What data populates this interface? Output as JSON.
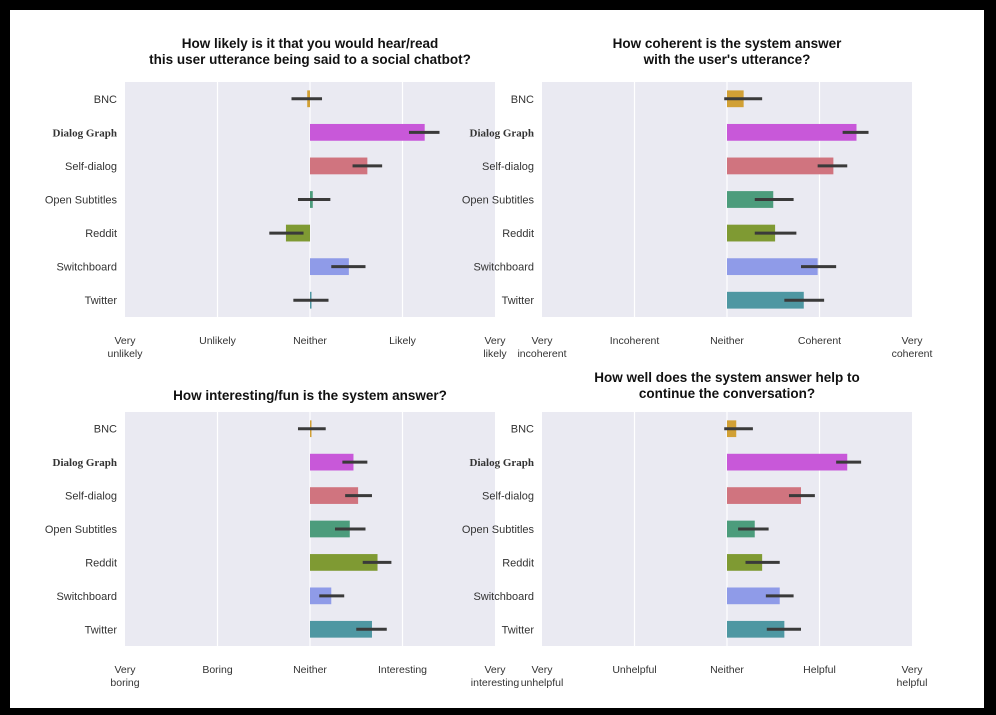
{
  "chart_data": [
    {
      "type": "bar",
      "orientation": "horizontal",
      "title": [
        "How likely is it that you would hear/read",
        "this user utterance being said to a social chatbot?"
      ],
      "categories": [
        "BNC",
        "Dialog Graph",
        "Self-dialog",
        "Open Subtitles",
        "Reddit",
        "Switchboard",
        "Twitter"
      ],
      "xlim": [
        1,
        5
      ],
      "ticks": [
        1,
        2,
        3,
        4,
        5
      ],
      "tick_labels": [
        [
          "Very",
          "unlikely"
        ],
        [
          "Unlikely"
        ],
        [
          "Neither"
        ],
        [
          "Likely"
        ],
        [
          "Very",
          "likely"
        ]
      ],
      "values": [
        2.97,
        4.24,
        3.62,
        3.03,
        2.74,
        3.42,
        3.0
      ],
      "error": [
        [
          2.8,
          3.13
        ],
        [
          4.07,
          4.4
        ],
        [
          3.46,
          3.78
        ],
        [
          2.87,
          3.22
        ],
        [
          2.56,
          2.93
        ],
        [
          3.23,
          3.6
        ],
        [
          2.82,
          3.2
        ]
      ],
      "colors": [
        "#d1a035",
        "#c858d9",
        "#d0747f",
        "#4c9c7c",
        "#7f9a33",
        "#8f9be8",
        "#4e97a2"
      ],
      "grid": true
    },
    {
      "type": "bar",
      "orientation": "horizontal",
      "title": [
        "How coherent is the system answer",
        "with the user's utterance?"
      ],
      "categories": [
        "BNC",
        "Dialog Graph",
        "Self-dialog",
        "Open Subtitles",
        "Reddit",
        "Switchboard",
        "Twitter"
      ],
      "xlim": [
        1,
        5
      ],
      "ticks": [
        1,
        2,
        3,
        4,
        5
      ],
      "tick_labels": [
        [
          "Very",
          "incoherent"
        ],
        [
          "Incoherent"
        ],
        [
          "Neither"
        ],
        [
          "Coherent"
        ],
        [
          "Very",
          "coherent"
        ]
      ],
      "values": [
        3.18,
        4.4,
        4.15,
        3.5,
        3.52,
        3.98,
        3.83
      ],
      "error": [
        [
          2.97,
          3.38
        ],
        [
          4.25,
          4.53
        ],
        [
          3.98,
          4.3
        ],
        [
          3.3,
          3.72
        ],
        [
          3.3,
          3.75
        ],
        [
          3.8,
          4.18
        ],
        [
          3.62,
          4.05
        ]
      ],
      "colors": [
        "#d1a035",
        "#c858d9",
        "#d0747f",
        "#4c9c7c",
        "#7f9a33",
        "#8f9be8",
        "#4e97a2"
      ],
      "grid": true
    },
    {
      "type": "bar",
      "orientation": "horizontal",
      "title": [
        "How interesting/fun is the system answer?"
      ],
      "categories": [
        "BNC",
        "Dialog Graph",
        "Self-dialog",
        "Open Subtitles",
        "Reddit",
        "Switchboard",
        "Twitter"
      ],
      "xlim": [
        1,
        5
      ],
      "ticks": [
        1,
        2,
        3,
        4,
        5
      ],
      "tick_labels": [
        [
          "Very",
          "boring"
        ],
        [
          "Boring"
        ],
        [
          "Neither"
        ],
        [
          "Interesting"
        ],
        [
          "Very",
          "interesting"
        ]
      ],
      "values": [
        3.0,
        3.47,
        3.52,
        3.43,
        3.73,
        3.23,
        3.67
      ],
      "error": [
        [
          2.87,
          3.17
        ],
        [
          3.35,
          3.62
        ],
        [
          3.38,
          3.67
        ],
        [
          3.27,
          3.6
        ],
        [
          3.57,
          3.88
        ],
        [
          3.1,
          3.37
        ],
        [
          3.5,
          3.83
        ]
      ],
      "colors": [
        "#d1a035",
        "#c858d9",
        "#d0747f",
        "#4c9c7c",
        "#7f9a33",
        "#8f9be8",
        "#4e97a2"
      ],
      "grid": true
    },
    {
      "type": "bar",
      "orientation": "horizontal",
      "title": [
        "How well does the system answer help to",
        "continue the conversation?"
      ],
      "categories": [
        "BNC",
        "Dialog Graph",
        "Self-dialog",
        "Open Subtitles",
        "Reddit",
        "Switchboard",
        "Twitter"
      ],
      "xlim": [
        1,
        5
      ],
      "ticks": [
        1,
        2,
        3,
        4,
        5
      ],
      "tick_labels": [
        [
          "Very",
          "unhelpful"
        ],
        [
          "Unhelpful"
        ],
        [
          "Neither"
        ],
        [
          "Helpful"
        ],
        [
          "Very",
          "helpful"
        ]
      ],
      "values": [
        3.1,
        4.3,
        3.8,
        3.3,
        3.38,
        3.57,
        3.62
      ],
      "error": [
        [
          2.97,
          3.28
        ],
        [
          4.18,
          4.45
        ],
        [
          3.67,
          3.95
        ],
        [
          3.12,
          3.45
        ],
        [
          3.2,
          3.57
        ],
        [
          3.42,
          3.72
        ],
        [
          3.43,
          3.8
        ]
      ],
      "colors": [
        "#d1a035",
        "#c858d9",
        "#d0747f",
        "#4c9c7c",
        "#7f9a33",
        "#8f9be8",
        "#4e97a2"
      ],
      "grid": true
    }
  ]
}
